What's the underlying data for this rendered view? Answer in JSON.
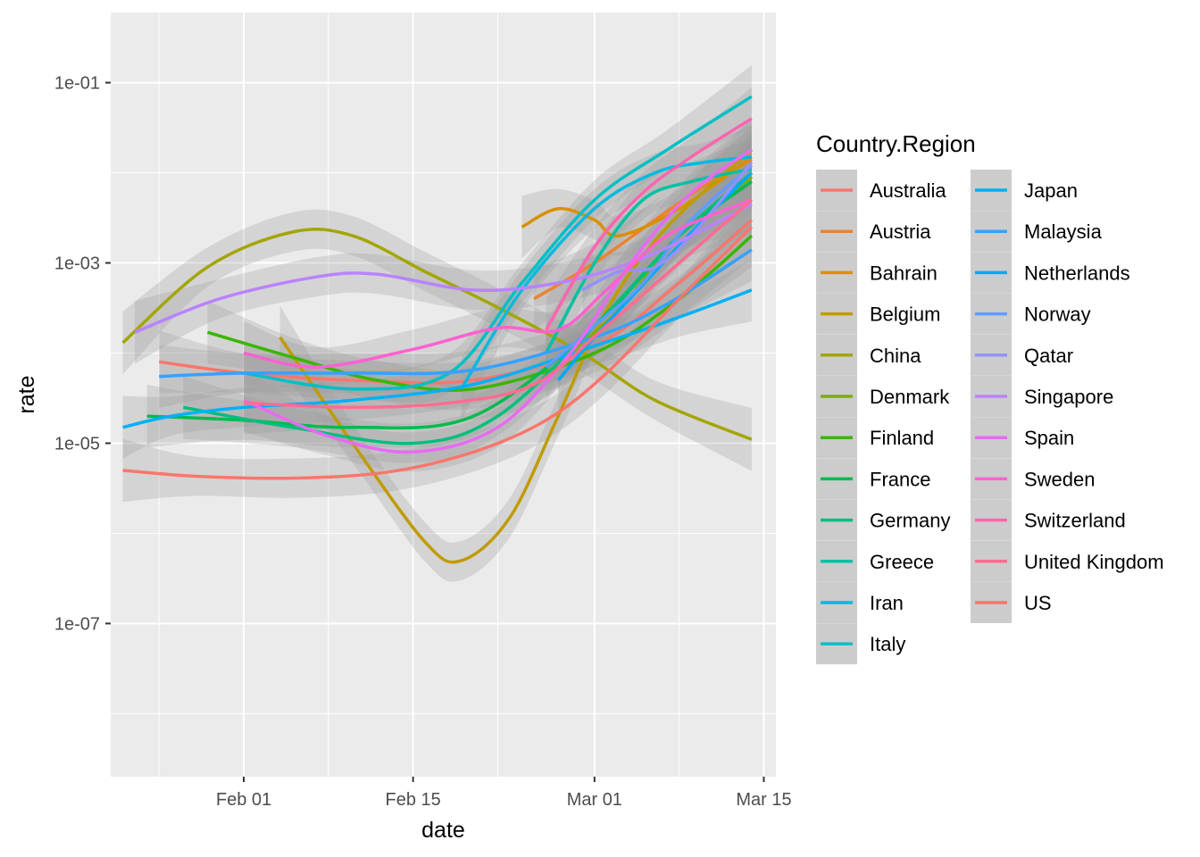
{
  "chart_data": {
    "type": "line",
    "title": "",
    "xlabel": "date",
    "ylabel": "rate",
    "x_scale": "date",
    "y_scale": "log10",
    "xlim": [
      "2020-01-21",
      "2020-03-16"
    ],
    "ylim": [
      2e-09,
      0.6
    ],
    "x_ticks": [
      {
        "date": "2020-02-01",
        "label": "Feb 01"
      },
      {
        "date": "2020-02-15",
        "label": "Feb 15"
      },
      {
        "date": "2020-03-01",
        "label": "Mar 01"
      },
      {
        "date": "2020-03-15",
        "label": "Mar 15"
      }
    ],
    "y_ticks": [
      {
        "value": 1e-07,
        "label": "1e-07"
      },
      {
        "value": 1e-05,
        "label": "1e-05"
      },
      {
        "value": 0.001,
        "label": "1e-03"
      },
      {
        "value": 0.1,
        "label": "1e-01"
      }
    ],
    "grid": true,
    "background": "#EBEBEB",
    "confidence_band_color": "#999999",
    "legend": {
      "title": "Country.Region",
      "placement": "right",
      "columns": 2
    },
    "series": [
      {
        "name": "Australia",
        "color": "#F8766D",
        "points": [
          [
            "2020-01-25",
            8e-05
          ],
          [
            "2020-02-01",
            6e-05
          ],
          [
            "2020-02-10",
            5e-05
          ],
          [
            "2020-02-20",
            5e-05
          ],
          [
            "2020-03-01",
            0.00012
          ],
          [
            "2020-03-08",
            0.0006
          ],
          [
            "2020-03-14",
            0.003
          ]
        ]
      },
      {
        "name": "Austria",
        "color": "#EA8331",
        "points": [
          [
            "2020-02-25",
            0.0004
          ],
          [
            "2020-03-01",
            0.001
          ],
          [
            "2020-03-06",
            0.003
          ],
          [
            "2020-03-10",
            0.007
          ],
          [
            "2020-03-14",
            0.014
          ]
        ]
      },
      {
        "name": "Bahrain",
        "color": "#D89000",
        "points": [
          [
            "2020-02-24",
            0.0025
          ],
          [
            "2020-02-27",
            0.004
          ],
          [
            "2020-03-01",
            0.003
          ],
          [
            "2020-03-03",
            0.002
          ],
          [
            "2020-03-08",
            0.004
          ],
          [
            "2020-03-14",
            0.015
          ]
        ]
      },
      {
        "name": "Belgium",
        "color": "#C09B00",
        "points": [
          [
            "2020-02-04",
            0.00015
          ],
          [
            "2020-02-10",
            1e-05
          ],
          [
            "2020-02-16",
            8e-07
          ],
          [
            "2020-02-19",
            5e-07
          ],
          [
            "2020-02-23",
            1.5e-06
          ],
          [
            "2020-02-27",
            2e-05
          ],
          [
            "2020-03-02",
            0.0003
          ],
          [
            "2020-03-07",
            0.0025
          ],
          [
            "2020-03-14",
            0.018
          ]
        ]
      },
      {
        "name": "China",
        "color": "#A3A500",
        "points": [
          [
            "2020-01-22",
            0.00013
          ],
          [
            "2020-01-29",
            0.0009
          ],
          [
            "2020-02-05",
            0.0022
          ],
          [
            "2020-02-10",
            0.002
          ],
          [
            "2020-02-16",
            0.0008
          ],
          [
            "2020-02-22",
            0.00032
          ],
          [
            "2020-02-29",
            0.0001
          ],
          [
            "2020-03-06",
            3e-05
          ],
          [
            "2020-03-14",
            1.1e-05
          ]
        ]
      },
      {
        "name": "Denmark",
        "color": "#7CAE00",
        "points": [
          [
            "2020-02-27",
            8e-05
          ],
          [
            "2020-03-03",
            0.0003
          ],
          [
            "2020-03-08",
            0.002
          ],
          [
            "2020-03-14",
            0.009
          ]
        ]
      },
      {
        "name": "Finland",
        "color": "#39B600",
        "points": [
          [
            "2020-01-29",
            0.00017
          ],
          [
            "2020-02-05",
            9e-05
          ],
          [
            "2020-02-12",
            5e-05
          ],
          [
            "2020-02-20",
            4e-05
          ],
          [
            "2020-03-01",
            0.0001
          ],
          [
            "2020-03-08",
            0.0004
          ],
          [
            "2020-03-14",
            0.002
          ]
        ]
      },
      {
        "name": "France",
        "color": "#00BB4E",
        "points": [
          [
            "2020-01-24",
            2e-05
          ],
          [
            "2020-02-01",
            1.8e-05
          ],
          [
            "2020-02-10",
            1.5e-05
          ],
          [
            "2020-02-20",
            2e-05
          ],
          [
            "2020-03-01",
            0.0002
          ],
          [
            "2020-03-08",
            0.002
          ],
          [
            "2020-03-14",
            0.008
          ]
        ]
      },
      {
        "name": "Germany",
        "color": "#00BF7D",
        "points": [
          [
            "2020-01-27",
            2.5e-05
          ],
          [
            "2020-02-05",
            1.5e-05
          ],
          [
            "2020-02-15",
            1e-05
          ],
          [
            "2020-02-22",
            2e-05
          ],
          [
            "2020-03-01",
            0.0002
          ],
          [
            "2020-03-08",
            0.002
          ],
          [
            "2020-03-14",
            0.01
          ]
        ]
      },
      {
        "name": "Greece",
        "color": "#00C1A3",
        "points": [
          [
            "2020-02-26",
            0.0001
          ],
          [
            "2020-03-01",
            0.001
          ],
          [
            "2020-03-05",
            0.005
          ],
          [
            "2020-03-09",
            0.008
          ],
          [
            "2020-03-14",
            0.011
          ]
        ]
      },
      {
        "name": "Iran",
        "color": "#00BAE0",
        "points": [
          [
            "2020-02-19",
            4e-05
          ],
          [
            "2020-02-24",
            0.0005
          ],
          [
            "2020-03-01",
            0.004
          ],
          [
            "2020-03-06",
            0.01
          ],
          [
            "2020-03-10",
            0.013
          ],
          [
            "2020-03-14",
            0.015
          ]
        ]
      },
      {
        "name": "Italy",
        "color": "#00BFC4",
        "points": [
          [
            "2020-02-01",
            6e-05
          ],
          [
            "2020-02-10",
            4e-05
          ],
          [
            "2020-02-18",
            6e-05
          ],
          [
            "2020-02-24",
            0.0006
          ],
          [
            "2020-03-01",
            0.005
          ],
          [
            "2020-03-07",
            0.018
          ],
          [
            "2020-03-14",
            0.07
          ]
        ]
      },
      {
        "name": "Japan",
        "color": "#00B0F6",
        "points": [
          [
            "2020-01-22",
            1.5e-05
          ],
          [
            "2020-01-26",
            2e-05
          ],
          [
            "2020-02-01",
            2.5e-05
          ],
          [
            "2020-02-10",
            3e-05
          ],
          [
            "2020-02-20",
            4.5e-05
          ],
          [
            "2020-03-01",
            0.00012
          ],
          [
            "2020-03-08",
            0.00025
          ],
          [
            "2020-03-14",
            0.0005
          ]
        ]
      },
      {
        "name": "Malaysia",
        "color": "#35A2FF",
        "points": [
          [
            "2020-01-25",
            5.5e-05
          ],
          [
            "2020-02-01",
            6e-05
          ],
          [
            "2020-02-10",
            6e-05
          ],
          [
            "2020-02-20",
            6.5e-05
          ],
          [
            "2020-03-01",
            0.00015
          ],
          [
            "2020-03-07",
            0.00035
          ],
          [
            "2020-03-14",
            0.0014
          ]
        ]
      },
      {
        "name": "Netherlands",
        "color": "#00A9FF",
        "points": [
          [
            "2020-02-27",
            5e-05
          ],
          [
            "2020-03-01",
            0.00015
          ],
          [
            "2020-03-06",
            0.0008
          ],
          [
            "2020-03-10",
            0.003
          ],
          [
            "2020-03-14",
            0.01
          ]
        ]
      },
      {
        "name": "Norway",
        "color": "#619CFF",
        "points": [
          [
            "2020-02-26",
            7e-05
          ],
          [
            "2020-03-01",
            0.0002
          ],
          [
            "2020-03-05",
            0.0006
          ],
          [
            "2020-03-09",
            0.003
          ],
          [
            "2020-03-14",
            0.012
          ]
        ]
      },
      {
        "name": "Qatar",
        "color": "#9590FF",
        "points": [
          [
            "2020-02-29",
            0.0005
          ],
          [
            "2020-03-03",
            0.0008
          ],
          [
            "2020-03-06",
            0.0009
          ],
          [
            "2020-03-09",
            0.002
          ],
          [
            "2020-03-14",
            0.013
          ]
        ]
      },
      {
        "name": "Singapore",
        "color": "#B983FF",
        "points": [
          [
            "2020-01-23",
            0.00017
          ],
          [
            "2020-01-30",
            0.0004
          ],
          [
            "2020-02-07",
            0.0007
          ],
          [
            "2020-02-12",
            0.00075
          ],
          [
            "2020-02-20",
            0.0005
          ],
          [
            "2020-02-27",
            0.0006
          ],
          [
            "2020-03-04",
            0.001
          ],
          [
            "2020-03-09",
            0.002
          ],
          [
            "2020-03-14",
            0.0045
          ]
        ]
      },
      {
        "name": "Spain",
        "color": "#E76BF3",
        "points": [
          [
            "2020-02-01",
            3e-05
          ],
          [
            "2020-02-08",
            1.2e-05
          ],
          [
            "2020-02-15",
            8e-06
          ],
          [
            "2020-02-22",
            1.5e-05
          ],
          [
            "2020-02-28",
            0.0001
          ],
          [
            "2020-03-04",
            0.001
          ],
          [
            "2020-03-09",
            0.006
          ],
          [
            "2020-03-14",
            0.018
          ]
        ]
      },
      {
        "name": "Sweden",
        "color": "#FD61D1",
        "points": [
          [
            "2020-02-01",
            0.0001
          ],
          [
            "2020-02-07",
            7e-05
          ],
          [
            "2020-02-15",
            0.00011
          ],
          [
            "2020-02-22",
            0.00019
          ],
          [
            "2020-02-27",
            0.00018
          ],
          [
            "2020-03-02",
            0.0005
          ],
          [
            "2020-03-07",
            0.002
          ],
          [
            "2020-03-14",
            0.005
          ]
        ]
      },
      {
        "name": "Switzerland",
        "color": "#FF64B0",
        "points": [
          [
            "2020-02-26",
            0.00018
          ],
          [
            "2020-03-01",
            0.0015
          ],
          [
            "2020-03-05",
            0.006
          ],
          [
            "2020-03-09",
            0.015
          ],
          [
            "2020-03-14",
            0.04
          ]
        ]
      },
      {
        "name": "United Kingdom",
        "color": "#FF6C91",
        "points": [
          [
            "2020-02-01",
            2.8e-05
          ],
          [
            "2020-02-10",
            2.5e-05
          ],
          [
            "2020-02-18",
            2.8e-05
          ],
          [
            "2020-02-25",
            4.5e-05
          ],
          [
            "2020-03-02",
            0.0002
          ],
          [
            "2020-03-08",
            0.001
          ],
          [
            "2020-03-14",
            0.005
          ]
        ]
      },
      {
        "name": "US",
        "color": "#F8766D",
        "points": [
          [
            "2020-01-22",
            5e-06
          ],
          [
            "2020-01-28",
            4.3e-06
          ],
          [
            "2020-02-05",
            4.1e-06
          ],
          [
            "2020-02-13",
            4.8e-06
          ],
          [
            "2020-02-20",
            8e-06
          ],
          [
            "2020-02-26",
            1.8e-05
          ],
          [
            "2020-03-02",
            6e-05
          ],
          [
            "2020-03-08",
            0.0004
          ],
          [
            "2020-03-14",
            0.0025
          ]
        ]
      }
    ]
  }
}
